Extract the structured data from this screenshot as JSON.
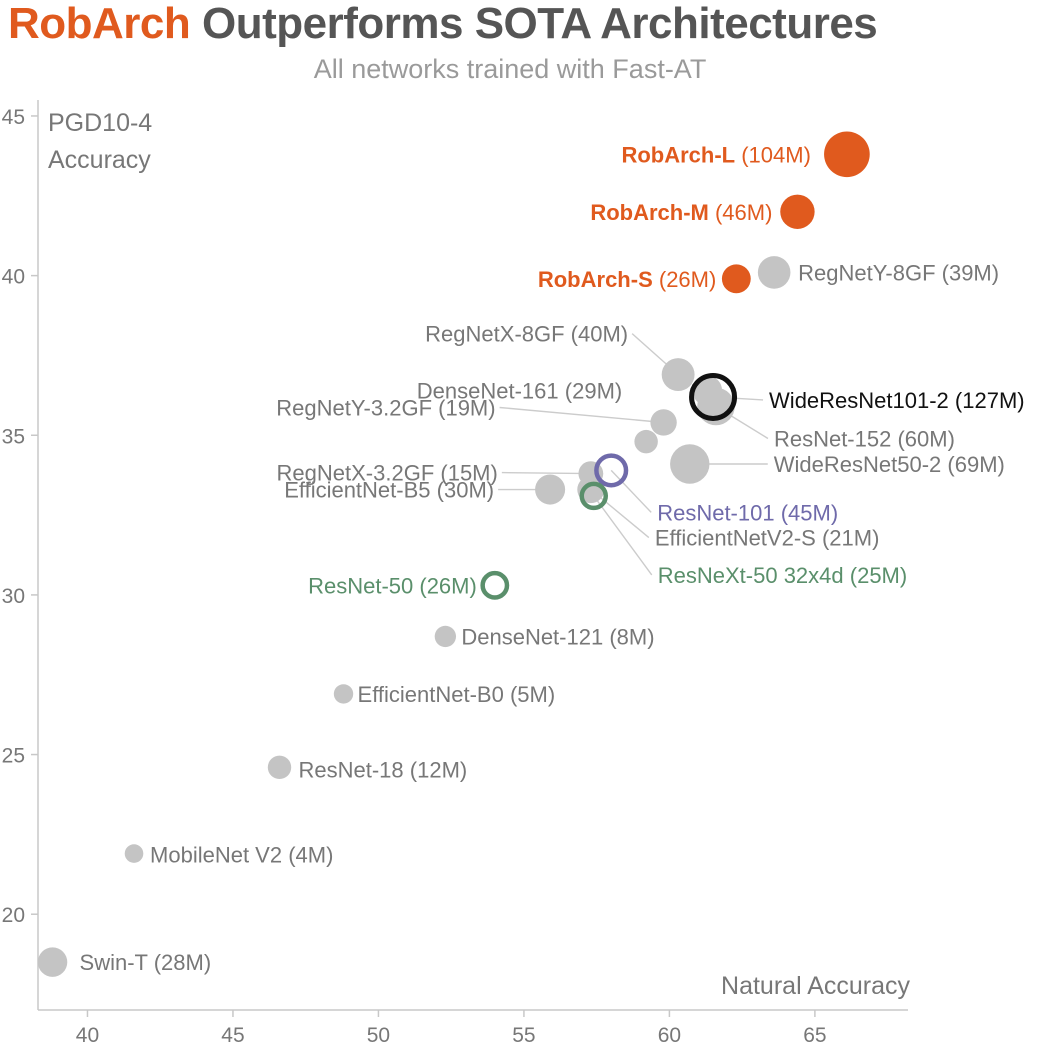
{
  "header": {
    "title_accent": "RobArch",
    "title_rest": " Outperforms SOTA  Architectures",
    "subtitle": "All networks trained with Fast-AT"
  },
  "colors": {
    "orange": "#e05a1e",
    "gray_point": "#c4c4c4",
    "gray_text": "#777777",
    "black": "#111111",
    "purple": "#6f6aaa",
    "green": "#5a8f6b"
  },
  "chart_data": {
    "type": "scatter",
    "title": "RobArch Outperforms SOTA  Architectures",
    "subtitle": "All networks trained with Fast-AT",
    "xlabel": "Natural Accuracy",
    "ylabel": "PGD10-4 Accuracy",
    "xlim": [
      38.3,
      68.2
    ],
    "ylim": [
      17,
      45.5
    ],
    "x_ticks": [
      40,
      45,
      50,
      55,
      60,
      65
    ],
    "y_ticks": [
      20,
      25,
      30,
      35,
      40,
      45
    ],
    "grid": false,
    "points": [
      {
        "name": "RobArch-L",
        "params": "(104M)",
        "x": 66.1,
        "y": 43.8,
        "size": 104,
        "style": "filled",
        "color": "orange",
        "bold": true,
        "label_anchor": "end",
        "label_dx": -36,
        "label_dy": 0
      },
      {
        "name": "RobArch-M",
        "params": "(46M)",
        "x": 64.4,
        "y": 42.0,
        "size": 46,
        "style": "filled",
        "color": "orange",
        "bold": true,
        "label_anchor": "end",
        "label_dx": -25,
        "label_dy": 0
      },
      {
        "name": "RobArch-S",
        "params": "(26M)",
        "x": 62.3,
        "y": 39.9,
        "size": 26,
        "style": "filled",
        "color": "orange",
        "bold": true,
        "label_anchor": "end",
        "label_dx": -20,
        "label_dy": 0
      },
      {
        "name": "RegNetY-8GF",
        "params": "(39M)",
        "x": 63.6,
        "y": 40.1,
        "size": 39,
        "style": "filled",
        "color": "gray",
        "bold": false,
        "label_anchor": "start",
        "label_dx": 24,
        "label_dy": 0
      },
      {
        "name": "RegNetX-8GF",
        "params": "(40M)",
        "x": 60.3,
        "y": 36.9,
        "size": 40,
        "style": "filled",
        "color": "gray",
        "bold": false,
        "label_anchor": "end",
        "label_dx": -50,
        "label_dy": -41,
        "leader": true
      },
      {
        "name": "DenseNet-161",
        "params": "(29M)",
        "x": 61.3,
        "y": 36.4,
        "size": 29,
        "style": "filled",
        "color": "gray",
        "bold": false,
        "label_anchor": "end",
        "label_dx": -85,
        "label_dy": 0
      },
      {
        "name": "WideResNet101-2",
        "params": "(127M)",
        "x": 61.5,
        "y": 36.2,
        "size": 127,
        "style": "ring",
        "color": "black",
        "bold": false,
        "label_anchor": "start",
        "label_dx": 56,
        "label_dy": 3,
        "leader": true
      },
      {
        "name": "ResNet-152",
        "params": "(60M)",
        "x": 61.6,
        "y": 35.9,
        "size": 60,
        "style": "filled",
        "color": "gray",
        "bold": false,
        "label_anchor": "start",
        "label_dx": 58,
        "label_dy": 32,
        "leader": true
      },
      {
        "name": "RegNetY-3.2GF",
        "params": "(19M)",
        "x": 59.8,
        "y": 35.4,
        "size": 19,
        "style": "filled",
        "color": "gray",
        "bold": false,
        "label_anchor": "end",
        "label_dx": -168,
        "label_dy": -15,
        "leader": true
      },
      {
        "name": "WideResNet50-2",
        "params": "(69M)",
        "x": 60.7,
        "y": 34.1,
        "size": 69,
        "style": "filled",
        "color": "gray",
        "bold": false,
        "label_anchor": "start",
        "label_dx": 84,
        "label_dy": 0,
        "leader": true
      },
      {
        "name": "ResNet-50 (partner)",
        "params": "",
        "x": 59.2,
        "y": 34.8,
        "size": 12,
        "style": "filled",
        "color": "gray",
        "bold": false,
        "label_anchor": "none"
      },
      {
        "name": "RegNetX-3.2GF",
        "params": "(15M)",
        "x": 57.3,
        "y": 33.8,
        "size": 15,
        "style": "filled",
        "color": "gray",
        "bold": false,
        "label_anchor": "end",
        "label_dx": -93,
        "label_dy": -1,
        "leader": true
      },
      {
        "name": "ResNet-101",
        "params": "(45M)",
        "x": 58.0,
        "y": 33.9,
        "size": 45,
        "style": "ring",
        "color": "purple",
        "bold": false,
        "label_anchor": "start",
        "label_dx": 46,
        "label_dy": 42,
        "leader": true
      },
      {
        "name": "EfficientNet-B5",
        "params": "(30M)",
        "x": 55.9,
        "y": 33.3,
        "size": 30,
        "style": "filled",
        "color": "gray",
        "bold": false,
        "label_anchor": "end",
        "label_dx": -56,
        "label_dy": 0,
        "leader": true
      },
      {
        "name": "ResNeXt-50 32x4d",
        "params": "(25M)",
        "x": 57.4,
        "y": 33.1,
        "size": 25,
        "style": "ring",
        "color": "green",
        "bold": false,
        "label_anchor": "start",
        "label_dx": 64,
        "label_dy": 79,
        "leader": true
      },
      {
        "name": "EfficientNetV2-S",
        "params": "(21M)",
        "x": 57.3,
        "y": 33.3,
        "size": 21,
        "style": "filled",
        "color": "gray",
        "bold": false,
        "label_anchor": "start",
        "label_dx": 64,
        "label_dy": 48,
        "leader": true
      },
      {
        "name": "ResNet-50",
        "params": "(26M)",
        "x": 54.0,
        "y": 30.3,
        "size": 26,
        "style": "ring",
        "color": "green",
        "bold": false,
        "label_anchor": "end",
        "label_dx": -18,
        "label_dy": 0
      },
      {
        "name": "DenseNet-121",
        "params": "(8M)",
        "x": 52.3,
        "y": 28.7,
        "size": 8,
        "style": "filled",
        "color": "gray",
        "bold": false,
        "label_anchor": "start",
        "label_dx": 16,
        "label_dy": 0
      },
      {
        "name": "EfficientNet-B0",
        "params": "(5M)",
        "x": 48.8,
        "y": 26.9,
        "size": 5,
        "style": "filled",
        "color": "gray",
        "bold": false,
        "label_anchor": "start",
        "label_dx": 14,
        "label_dy": 0
      },
      {
        "name": "ResNet-18",
        "params": "(12M)",
        "x": 46.6,
        "y": 24.6,
        "size": 12,
        "style": "filled",
        "color": "gray",
        "bold": false,
        "label_anchor": "start",
        "label_dx": 19,
        "label_dy": 2
      },
      {
        "name": "MobileNet V2",
        "params": "(4M)",
        "x": 41.6,
        "y": 21.9,
        "size": 4,
        "style": "filled",
        "color": "gray",
        "bold": false,
        "label_anchor": "start",
        "label_dx": 16,
        "label_dy": 1
      },
      {
        "name": "Swin-T",
        "params": "(28M)",
        "x": 38.8,
        "y": 18.5,
        "size": 28,
        "style": "filled",
        "color": "gray",
        "bold": false,
        "label_anchor": "start",
        "label_dx": 27,
        "label_dy": 0
      }
    ]
  }
}
